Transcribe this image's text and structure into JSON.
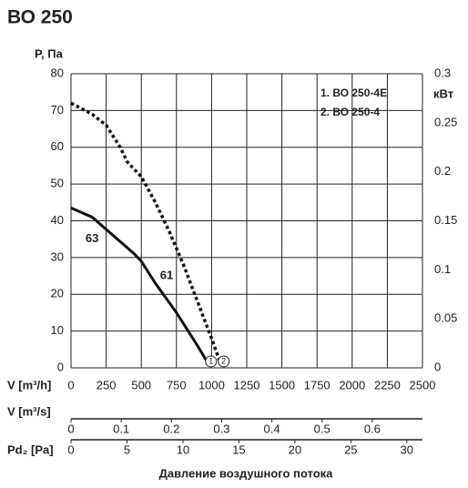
{
  "chart_data": {
    "type": "line",
    "title": "ВО 250",
    "ylabel": "P, Па",
    "y2label": "кВт",
    "xlabel": "V [m³/h]",
    "caption": "Давление воздушного потока",
    "xlim": [
      0,
      2500
    ],
    "xticks": [
      0,
      250,
      500,
      750,
      1000,
      1250,
      1500,
      1750,
      2000,
      2250,
      2500
    ],
    "ylim": [
      0,
      80
    ],
    "yticks": [
      0,
      10,
      20,
      30,
      40,
      50,
      60,
      70,
      80
    ],
    "y2lim": [
      0,
      0.3
    ],
    "y2ticks": [
      0,
      0.05,
      0.1,
      0.15,
      0.2,
      0.25,
      0.3
    ],
    "grid": true,
    "series": [
      {
        "name": "1. ВО 250-4Е",
        "color": "#111111",
        "style": "solid",
        "end_label": "1",
        "x": [
          0,
          150,
          300,
          450,
          500,
          600,
          750,
          900,
          970
        ],
        "values": [
          43.5,
          41,
          36,
          31,
          29,
          23,
          15,
          6,
          1.5
        ]
      },
      {
        "name": "2. ВО 250-4",
        "color": "#111111",
        "style": "dotted",
        "end_label": "2",
        "x": [
          0,
          150,
          250,
          350,
          400,
          500,
          600,
          700,
          800,
          900,
          1000,
          1060
        ],
        "values": [
          72,
          69,
          66,
          60,
          56,
          52,
          45,
          37,
          28,
          18,
          8,
          1.5
        ]
      }
    ],
    "annotations": [
      {
        "text": "63",
        "x": 150,
        "y": 35
      },
      {
        "text": "61",
        "x": 680,
        "y": 25
      }
    ],
    "extra_axes": [
      {
        "label": "V [m³/s]",
        "xlim": [
          0,
          0.7
        ],
        "xticks": [
          0,
          0.1,
          0.2,
          0.3,
          0.4,
          0.5,
          0.6
        ]
      },
      {
        "label": "Pd₂ [Pa]",
        "xlim": [
          0,
          31.4
        ],
        "xticks": [
          0,
          5,
          10,
          15,
          20,
          25,
          30
        ]
      }
    ]
  }
}
